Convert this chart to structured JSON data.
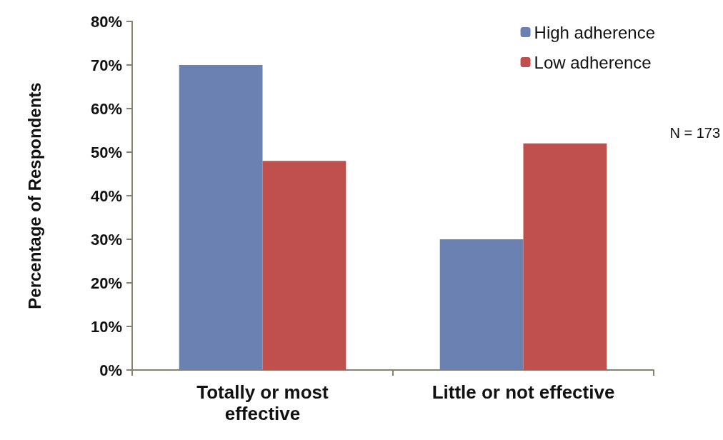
{
  "chart_data": {
    "type": "bar",
    "ylabel": "Percentage of Respondents",
    "categories": [
      "Totally or most\neffective",
      "Little or not effective"
    ],
    "series": [
      {
        "name": "High adherence",
        "color": "#6a81b1",
        "values": [
          70,
          30
        ]
      },
      {
        "name": "Low adherence",
        "color": "#c0504d",
        "values": [
          48,
          52
        ]
      }
    ],
    "ylim": [
      0,
      80
    ],
    "yticks": [
      {
        "value": 0,
        "label": "0%"
      },
      {
        "value": 10,
        "label": "10%"
      },
      {
        "value": 20,
        "label": "20%"
      },
      {
        "value": 30,
        "label": "30%"
      },
      {
        "value": 40,
        "label": "40%"
      },
      {
        "value": 50,
        "label": "50%"
      },
      {
        "value": 60,
        "label": "60%"
      },
      {
        "value": 70,
        "label": "70%"
      },
      {
        "value": 80,
        "label": "80%"
      }
    ],
    "annotations": [
      "N = 173"
    ],
    "legend": "top right",
    "grid": false
  }
}
